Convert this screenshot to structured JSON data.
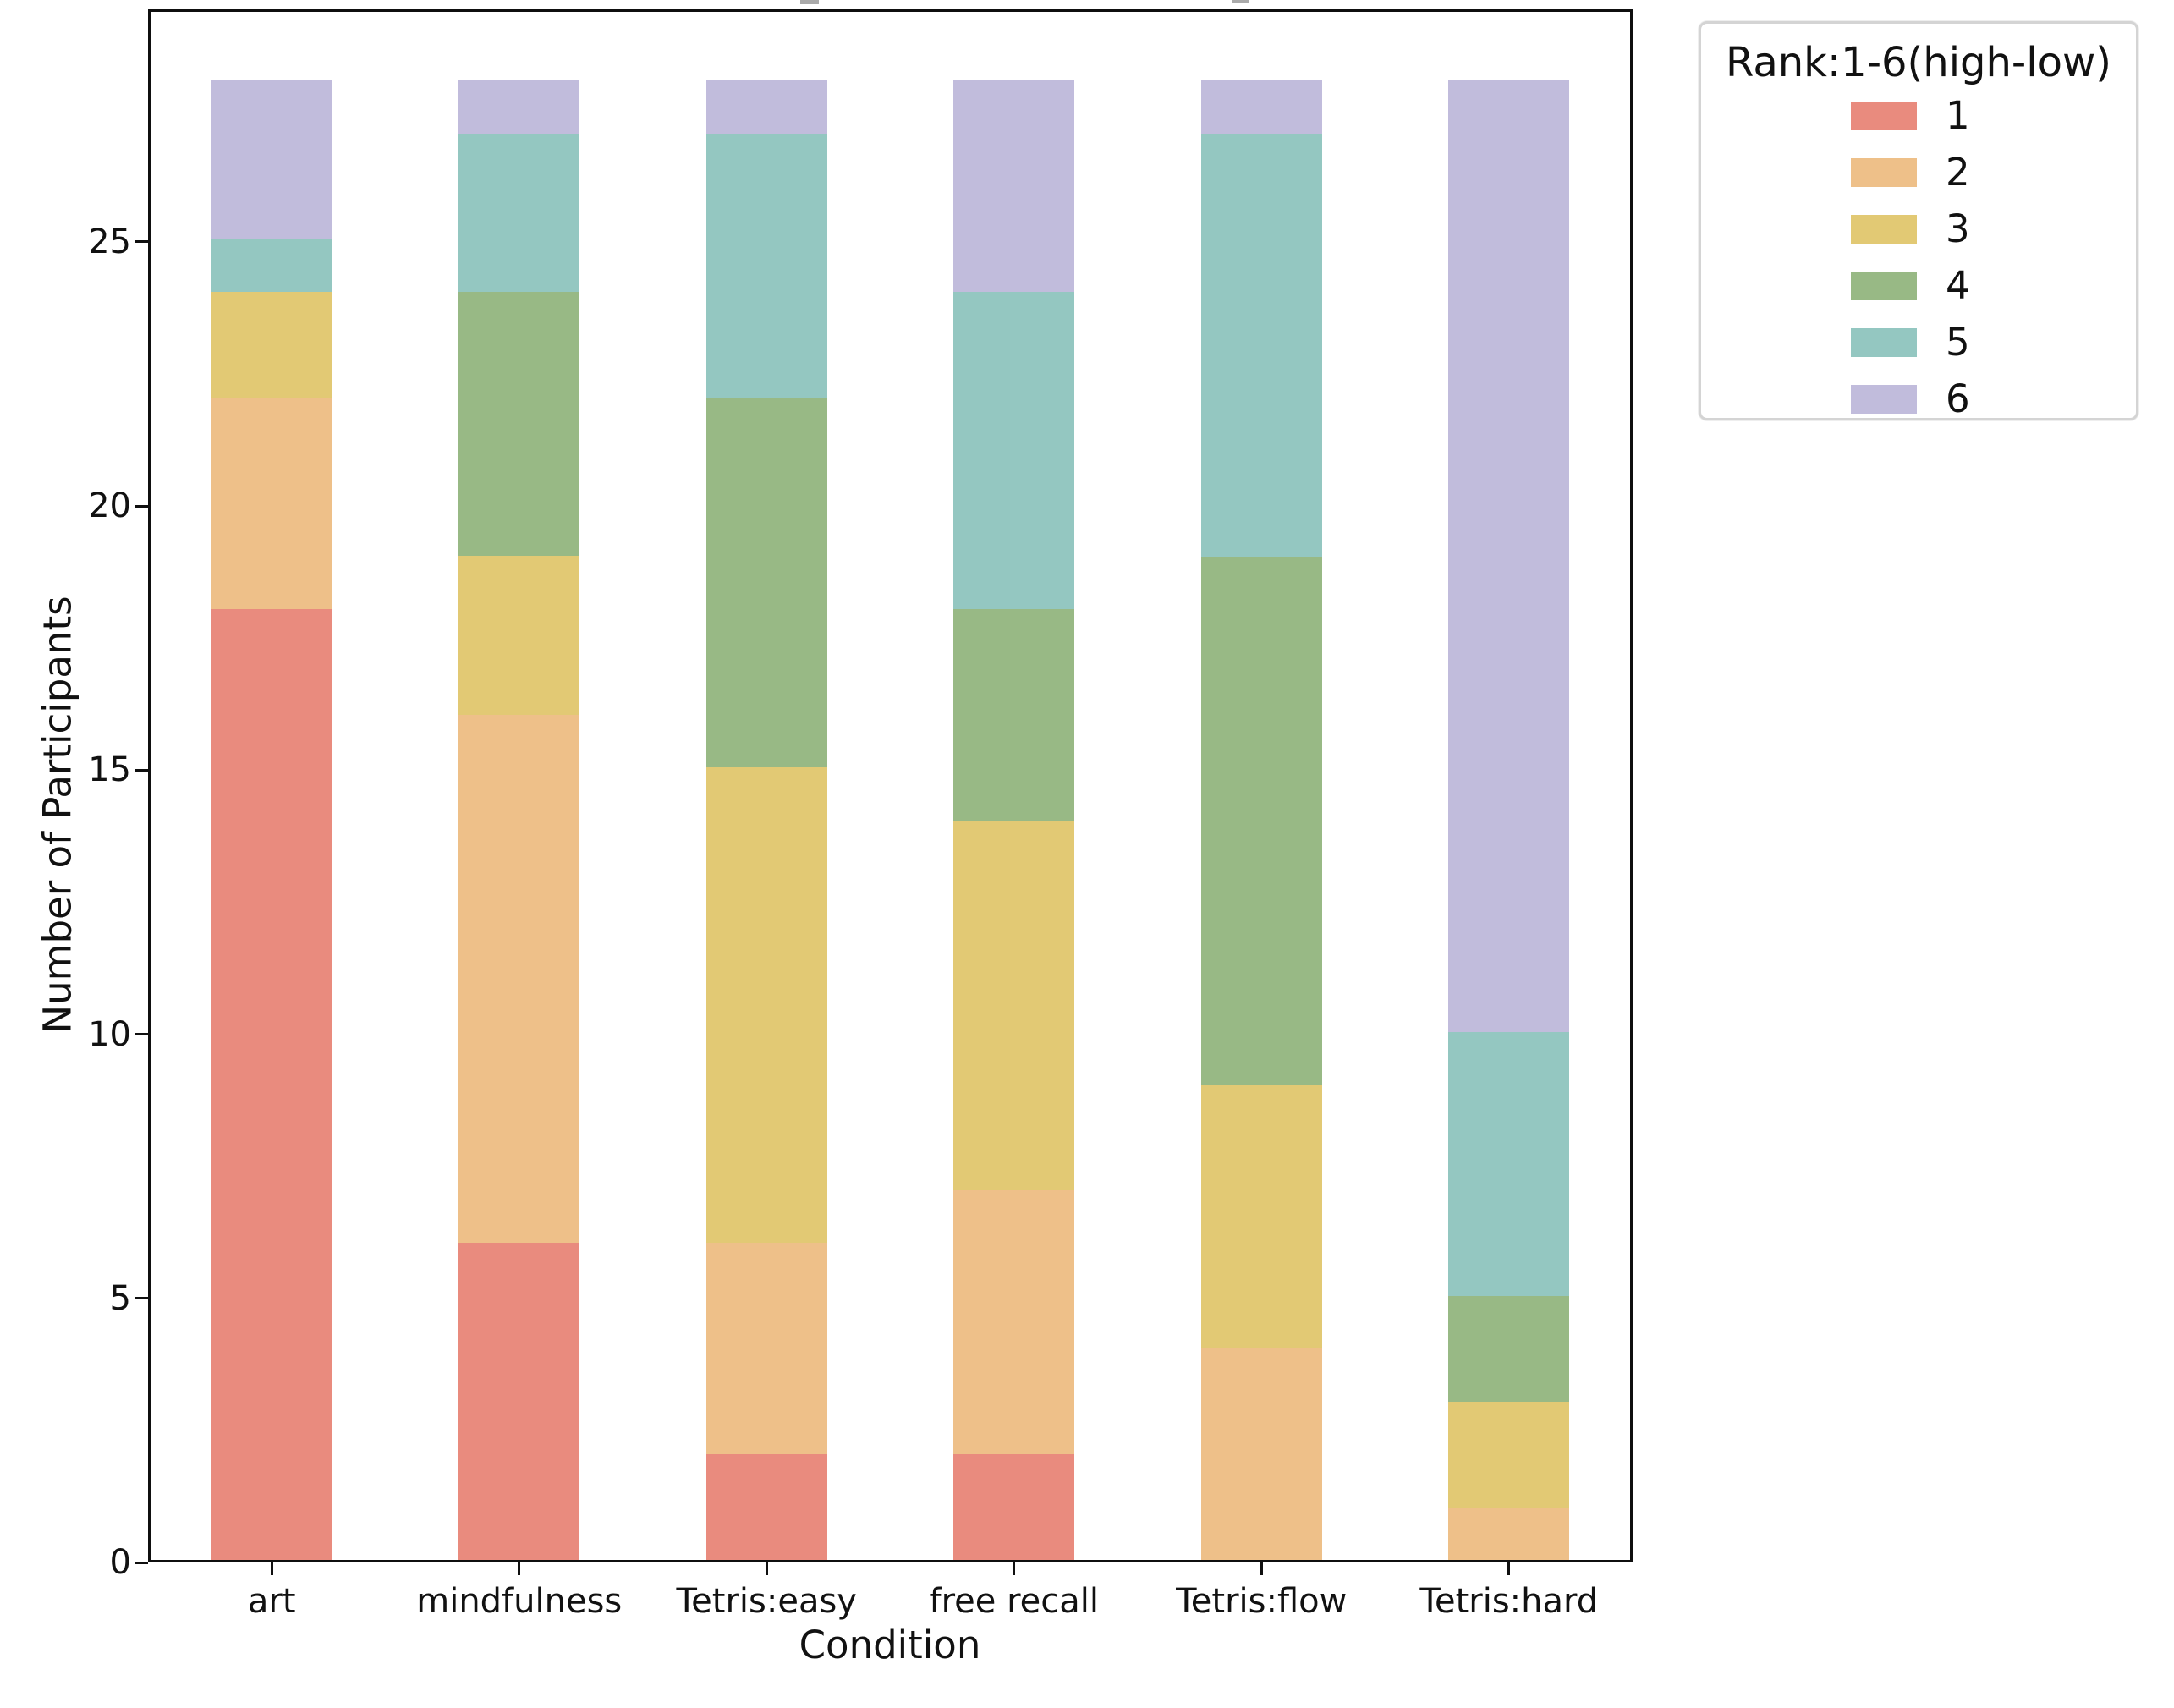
{
  "figure": {
    "background": "#ffffff",
    "axis_color": "#0f0f0f"
  },
  "chart_data": {
    "type": "bar",
    "stacked": true,
    "xlabel": "Condition",
    "ylabel": "Number of Participants",
    "categories": [
      "art",
      "mindfulness",
      "Tetris:easy",
      "free recall",
      "Tetris:flow",
      "Tetris:hard"
    ],
    "series": [
      {
        "name": "1",
        "color": "#e98b7e",
        "values": [
          18,
          6,
          2,
          2,
          0,
          0
        ]
      },
      {
        "name": "2",
        "color": "#eec089",
        "values": [
          4,
          10,
          4,
          5,
          4,
          1
        ]
      },
      {
        "name": "3",
        "color": "#e2c974",
        "values": [
          2,
          3,
          9,
          7,
          5,
          2
        ]
      },
      {
        "name": "4",
        "color": "#98b985",
        "values": [
          0,
          5,
          7,
          4,
          10,
          2
        ]
      },
      {
        "name": "5",
        "color": "#94c7c1",
        "values": [
          1,
          3,
          5,
          6,
          8,
          5
        ]
      },
      {
        "name": "6",
        "color": "#c1bcdc",
        "values": [
          3,
          1,
          1,
          4,
          1,
          18
        ]
      }
    ],
    "totals_per_category": [
      28,
      28,
      28,
      28,
      28,
      28
    ],
    "yticks": [
      0,
      5,
      10,
      15,
      20,
      25
    ],
    "ylim": [
      0,
      29.4
    ],
    "grid": false,
    "legend": {
      "title": "Rank:1-6(high-low)",
      "entries": [
        "1",
        "2",
        "3",
        "4",
        "5",
        "6"
      ],
      "position": "upper-right-outside"
    }
  }
}
